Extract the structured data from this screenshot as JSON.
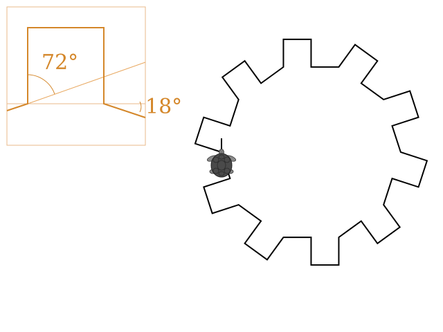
{
  "inset": {
    "angle_large_label": "72°",
    "angle_small_label": "18°",
    "accent_color": "#d4872a",
    "frame_color": "#e8b98a"
  },
  "gear": {
    "teeth": 10,
    "stroke_color": "#000000"
  },
  "turtle": {
    "icon": "turtle-icon",
    "heading": "down",
    "shell_color": "#4a4a4a",
    "body_color": "#7a7a7a"
  }
}
